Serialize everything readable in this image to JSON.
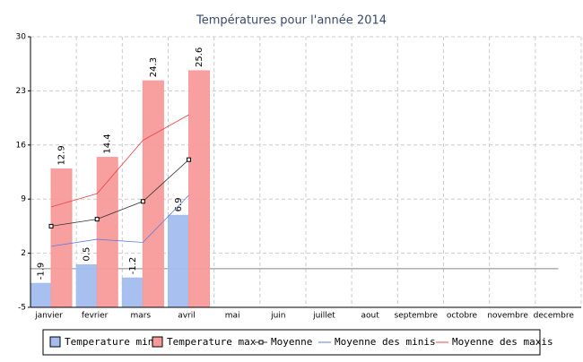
{
  "chart_data": {
    "type": "bar",
    "title": "Températures pour l'année 2014",
    "categories": [
      "janvier",
      "fevrier",
      "mars",
      "avril",
      "mai",
      "juin",
      "juillet",
      "aout",
      "septembre",
      "octobre",
      "novembre",
      "decembre"
    ],
    "ylim": [
      -5,
      30
    ],
    "yticks": [
      -5,
      2,
      9,
      16,
      23,
      30
    ],
    "grid": true,
    "series": [
      {
        "name": "Temperature min",
        "type": "bar",
        "color": "#a3bdee",
        "values": [
          -1.9,
          0.5,
          -1.2,
          6.9,
          null,
          null,
          null,
          null,
          null,
          null,
          null,
          null
        ]
      },
      {
        "name": "Temperature max",
        "type": "bar",
        "color": "#f89a9a",
        "values": [
          12.9,
          14.4,
          24.3,
          25.6,
          null,
          null,
          null,
          null,
          null,
          null,
          null,
          null
        ]
      },
      {
        "name": "Moyenne",
        "type": "line",
        "marker": true,
        "color": "#333333",
        "values": [
          5.5,
          6.4,
          8.7,
          14.1,
          null,
          null,
          null,
          null,
          null,
          null,
          null,
          null
        ]
      },
      {
        "name": "Moyenne des minis",
        "type": "line",
        "color": "#5b7fdc",
        "values": [
          2.9,
          3.8,
          3.4,
          9.5,
          null,
          null,
          null,
          null,
          null,
          null,
          null,
          null
        ]
      },
      {
        "name": "Moyenne des maxis",
        "type": "line",
        "color": "#ee4444",
        "values": [
          8.0,
          9.7,
          16.6,
          19.9,
          null,
          null,
          null,
          null,
          null,
          null,
          null,
          null
        ]
      }
    ]
  }
}
